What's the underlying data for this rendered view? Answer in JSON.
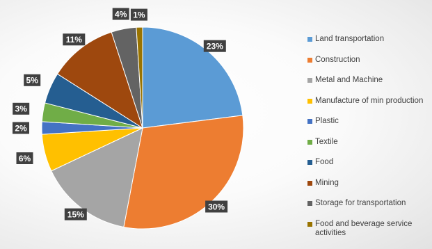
{
  "chart_data": {
    "type": "pie",
    "title": "",
    "start_angle_deg": 0,
    "direction": "clockwise",
    "legend_position": "right",
    "slices": [
      {
        "name": "Land transportation",
        "value": 23,
        "label": "23%",
        "color": "#5B9BD5"
      },
      {
        "name": "Construction",
        "value": 30,
        "label": "30%",
        "color": "#ED7D31"
      },
      {
        "name": "Metal and Machine",
        "value": 15,
        "label": "15%",
        "color": "#A5A5A5"
      },
      {
        "name": "Manufacture of min production",
        "value": 6,
        "label": "6%",
        "color": "#FFC000"
      },
      {
        "name": "Plastic",
        "value": 2,
        "label": "2%",
        "color": "#4472C4"
      },
      {
        "name": "Textile",
        "value": 3,
        "label": "3%",
        "color": "#70AD47"
      },
      {
        "name": "Food",
        "value": 5,
        "label": "5%",
        "color": "#255E91"
      },
      {
        "name": "Mining",
        "value": 11,
        "label": "11%",
        "color": "#9E480E"
      },
      {
        "name": "Storage for transportation",
        "value": 4,
        "label": "4%",
        "color": "#636363"
      },
      {
        "name": "Food and beverage service activities",
        "value": 1,
        "label": "1%",
        "color": "#997300"
      }
    ]
  }
}
